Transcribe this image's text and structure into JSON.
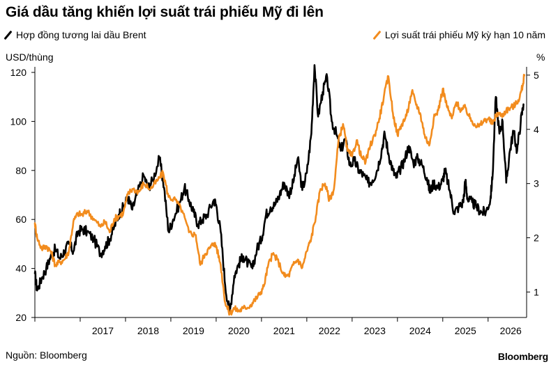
{
  "title": "Giá dầu tăng khiến lợi suất trái phiếu Mỹ đi lên",
  "source": "Nguồn: Bloomberg",
  "brand": "Bloomberg",
  "chart_data": {
    "type": "line",
    "title": "Giá dầu tăng khiến lợi suất trái phiếu Mỹ đi lên",
    "x_ticks": [
      "2017",
      "2018",
      "2019",
      "2020",
      "2021",
      "2022",
      "2023",
      "2024",
      "2025",
      "2026"
    ],
    "x_range": [
      2016.0,
      2026.85
    ],
    "y_left": {
      "label": "USD/thùng",
      "range": [
        20,
        120
      ],
      "ticks": [
        20,
        40,
        60,
        80,
        100,
        120
      ]
    },
    "y_right": {
      "label": "%",
      "range": [
        0.53,
        5.05
      ],
      "ticks": [
        1,
        2,
        3,
        4,
        5
      ]
    },
    "legend_placement": "top",
    "grid": false,
    "series": [
      {
        "name": "Hợp đồng tương lai dầu Brent",
        "axis": "left",
        "color": "#000000",
        "points": [
          [
            2016.0,
            38
          ],
          [
            2016.05,
            31
          ],
          [
            2016.15,
            36
          ],
          [
            2016.25,
            40
          ],
          [
            2016.35,
            45
          ],
          [
            2016.45,
            48
          ],
          [
            2016.55,
            44
          ],
          [
            2016.65,
            47
          ],
          [
            2016.75,
            50
          ],
          [
            2016.85,
            47
          ],
          [
            2016.95,
            55
          ],
          [
            2017.05,
            56
          ],
          [
            2017.15,
            55
          ],
          [
            2017.3,
            52
          ],
          [
            2017.45,
            46
          ],
          [
            2017.55,
            49
          ],
          [
            2017.65,
            52
          ],
          [
            2017.75,
            57
          ],
          [
            2017.85,
            62
          ],
          [
            2017.95,
            65
          ],
          [
            2018.05,
            69
          ],
          [
            2018.15,
            64
          ],
          [
            2018.25,
            70
          ],
          [
            2018.4,
            78
          ],
          [
            2018.5,
            73
          ],
          [
            2018.6,
            76
          ],
          [
            2018.75,
            85
          ],
          [
            2018.85,
            73
          ],
          [
            2018.95,
            55
          ],
          [
            2019.05,
            60
          ],
          [
            2019.2,
            67
          ],
          [
            2019.3,
            73
          ],
          [
            2019.4,
            68
          ],
          [
            2019.5,
            63
          ],
          [
            2019.6,
            58
          ],
          [
            2019.7,
            60
          ],
          [
            2019.8,
            62
          ],
          [
            2019.95,
            68
          ],
          [
            2020.0,
            66
          ],
          [
            2020.1,
            55
          ],
          [
            2020.2,
            33
          ],
          [
            2020.3,
            22
          ],
          [
            2020.4,
            37
          ],
          [
            2020.5,
            42
          ],
          [
            2020.6,
            45
          ],
          [
            2020.7,
            42
          ],
          [
            2020.8,
            40
          ],
          [
            2020.9,
            48
          ],
          [
            2021.0,
            52
          ],
          [
            2021.1,
            62
          ],
          [
            2021.2,
            65
          ],
          [
            2021.3,
            66
          ],
          [
            2021.4,
            70
          ],
          [
            2021.5,
            75
          ],
          [
            2021.6,
            70
          ],
          [
            2021.7,
            75
          ],
          [
            2021.8,
            85
          ],
          [
            2021.9,
            72
          ],
          [
            2022.0,
            79
          ],
          [
            2022.1,
            95
          ],
          [
            2022.17,
            123
          ],
          [
            2022.25,
            102
          ],
          [
            2022.35,
            112
          ],
          [
            2022.45,
            118
          ],
          [
            2022.55,
            100
          ],
          [
            2022.65,
            95
          ],
          [
            2022.75,
            88
          ],
          [
            2022.85,
            93
          ],
          [
            2022.95,
            82
          ],
          [
            2023.05,
            84
          ],
          [
            2023.15,
            80
          ],
          [
            2023.25,
            78
          ],
          [
            2023.35,
            75
          ],
          [
            2023.45,
            76
          ],
          [
            2023.55,
            80
          ],
          [
            2023.65,
            88
          ],
          [
            2023.72,
            95
          ],
          [
            2023.8,
            87
          ],
          [
            2023.9,
            80
          ],
          [
            2023.97,
            77
          ],
          [
            2024.05,
            80
          ],
          [
            2024.15,
            84
          ],
          [
            2024.25,
            90
          ],
          [
            2024.35,
            83
          ],
          [
            2024.45,
            85
          ],
          [
            2024.55,
            82
          ],
          [
            2024.65,
            77
          ],
          [
            2024.72,
            71
          ],
          [
            2024.8,
            75
          ],
          [
            2024.9,
            73
          ],
          [
            2025.0,
            76
          ],
          [
            2025.05,
            80
          ],
          [
            2025.15,
            72
          ],
          [
            2025.25,
            63
          ],
          [
            2025.35,
            65
          ],
          [
            2025.45,
            67
          ],
          [
            2025.5,
            76
          ],
          [
            2025.55,
            68
          ],
          [
            2025.65,
            67
          ],
          [
            2025.75,
            65
          ],
          [
            2025.85,
            63
          ],
          [
            2025.95,
            63
          ],
          [
            2026.05,
            68
          ],
          [
            2026.1,
            78
          ],
          [
            2026.17,
            110
          ],
          [
            2026.25,
            95
          ],
          [
            2026.32,
            100
          ],
          [
            2026.4,
            75
          ],
          [
            2026.48,
            88
          ],
          [
            2026.56,
            96
          ],
          [
            2026.64,
            88
          ],
          [
            2026.72,
            100
          ],
          [
            2026.78,
            107
          ]
        ]
      },
      {
        "name": "Lợi suất trái phiếu Mỹ kỳ hạn 10 năm",
        "axis": "right",
        "color": "#f28c1e",
        "points": [
          [
            2016.0,
            2.27
          ],
          [
            2016.05,
            2.0
          ],
          [
            2016.15,
            1.8
          ],
          [
            2016.25,
            1.85
          ],
          [
            2016.35,
            1.75
          ],
          [
            2016.45,
            1.5
          ],
          [
            2016.55,
            1.55
          ],
          [
            2016.65,
            1.6
          ],
          [
            2016.75,
            1.75
          ],
          [
            2016.85,
            2.3
          ],
          [
            2016.95,
            2.45
          ],
          [
            2017.05,
            2.42
          ],
          [
            2017.15,
            2.5
          ],
          [
            2017.3,
            2.35
          ],
          [
            2017.45,
            2.2
          ],
          [
            2017.55,
            2.3
          ],
          [
            2017.65,
            2.1
          ],
          [
            2017.75,
            2.35
          ],
          [
            2017.85,
            2.4
          ],
          [
            2017.95,
            2.45
          ],
          [
            2018.05,
            2.8
          ],
          [
            2018.15,
            2.9
          ],
          [
            2018.3,
            2.85
          ],
          [
            2018.4,
            3.0
          ],
          [
            2018.55,
            2.9
          ],
          [
            2018.7,
            3.05
          ],
          [
            2018.83,
            3.2
          ],
          [
            2018.95,
            2.75
          ],
          [
            2019.1,
            2.7
          ],
          [
            2019.25,
            2.5
          ],
          [
            2019.4,
            2.1
          ],
          [
            2019.55,
            2.05
          ],
          [
            2019.65,
            1.5
          ],
          [
            2019.75,
            1.7
          ],
          [
            2019.85,
            1.8
          ],
          [
            2019.95,
            1.9
          ],
          [
            2020.0,
            1.85
          ],
          [
            2020.1,
            1.5
          ],
          [
            2020.2,
            0.8
          ],
          [
            2020.3,
            0.6
          ],
          [
            2020.4,
            0.7
          ],
          [
            2020.5,
            0.65
          ],
          [
            2020.6,
            0.7
          ],
          [
            2020.75,
            0.75
          ],
          [
            2020.85,
            0.85
          ],
          [
            2020.95,
            0.95
          ],
          [
            2021.05,
            1.1
          ],
          [
            2021.15,
            1.5
          ],
          [
            2021.25,
            1.7
          ],
          [
            2021.35,
            1.6
          ],
          [
            2021.5,
            1.3
          ],
          [
            2021.6,
            1.3
          ],
          [
            2021.7,
            1.5
          ],
          [
            2021.8,
            1.6
          ],
          [
            2021.9,
            1.45
          ],
          [
            2022.0,
            1.75
          ],
          [
            2022.1,
            2.0
          ],
          [
            2022.2,
            2.4
          ],
          [
            2022.3,
            2.9
          ],
          [
            2022.4,
            3.0
          ],
          [
            2022.5,
            2.7
          ],
          [
            2022.6,
            2.9
          ],
          [
            2022.7,
            3.8
          ],
          [
            2022.8,
            4.1
          ],
          [
            2022.9,
            3.6
          ],
          [
            2023.0,
            3.5
          ],
          [
            2023.1,
            3.8
          ],
          [
            2023.2,
            3.5
          ],
          [
            2023.3,
            3.4
          ],
          [
            2023.4,
            3.7
          ],
          [
            2023.5,
            3.9
          ],
          [
            2023.6,
            4.2
          ],
          [
            2023.7,
            4.6
          ],
          [
            2023.8,
            4.98
          ],
          [
            2023.9,
            4.3
          ],
          [
            2024.0,
            3.9
          ],
          [
            2024.1,
            4.1
          ],
          [
            2024.2,
            4.25
          ],
          [
            2024.32,
            4.7
          ],
          [
            2024.4,
            4.5
          ],
          [
            2024.5,
            4.3
          ],
          [
            2024.6,
            3.9
          ],
          [
            2024.7,
            3.7
          ],
          [
            2024.8,
            4.2
          ],
          [
            2024.9,
            4.35
          ],
          [
            2025.0,
            4.75
          ],
          [
            2025.1,
            4.4
          ],
          [
            2025.2,
            4.2
          ],
          [
            2025.3,
            4.5
          ],
          [
            2025.4,
            4.35
          ],
          [
            2025.5,
            4.4
          ],
          [
            2025.6,
            4.2
          ],
          [
            2025.7,
            4.1
          ],
          [
            2025.8,
            4.05
          ],
          [
            2025.9,
            4.15
          ],
          [
            2026.0,
            4.2
          ],
          [
            2026.1,
            4.1
          ],
          [
            2026.2,
            4.3
          ],
          [
            2026.3,
            4.25
          ],
          [
            2026.4,
            4.35
          ],
          [
            2026.5,
            4.4
          ],
          [
            2026.6,
            4.45
          ],
          [
            2026.7,
            4.6
          ],
          [
            2026.76,
            4.8
          ],
          [
            2026.8,
            5.0
          ]
        ]
      }
    ]
  }
}
